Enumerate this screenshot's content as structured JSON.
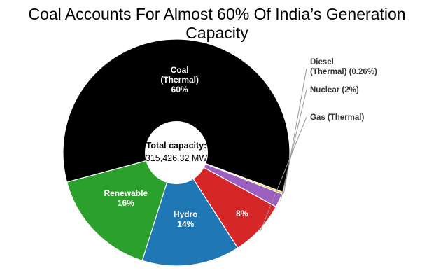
{
  "chart_data": {
    "type": "pie",
    "title": "Coal Accounts For Almost 60% Of India’s Generation Capacity",
    "center_label": "Total capacity:",
    "center_value": "315,426.32 MW",
    "slices": [
      {
        "name": "Coal (Thermal)",
        "label_lines": [
          "Coal",
          "(Thermal)"
        ],
        "pct_label": "60%",
        "value": 60.0,
        "color": "#000000",
        "label_position": "inside"
      },
      {
        "name": "Diesel (Thermal)",
        "label_lines": [
          "Diesel",
          "(Thermal)"
        ],
        "pct_label": "(0.26%)",
        "value": 0.26,
        "color": "#f5c518",
        "label_position": "outside"
      },
      {
        "name": "Nuclear",
        "label_lines": [
          "Nuclear"
        ],
        "pct_label": "(2%)",
        "value": 2.0,
        "color": "#9b5fc0",
        "label_position": "outside"
      },
      {
        "name": "Gas (Thermal)",
        "label_lines": [
          "Gas (Thermal)"
        ],
        "pct_label": "8%",
        "value": 8.0,
        "color": "#d62728",
        "label_position": "outside-with-inside-pct"
      },
      {
        "name": "Hydro",
        "label_lines": [
          "Hydro"
        ],
        "pct_label": "14%",
        "value": 14.0,
        "color": "#1f77b4",
        "label_position": "inside"
      },
      {
        "name": "Renewable",
        "label_lines": [
          "Renewable"
        ],
        "pct_label": "16%",
        "value": 16.0,
        "color": "#2ca02c",
        "label_position": "inside"
      }
    ]
  }
}
